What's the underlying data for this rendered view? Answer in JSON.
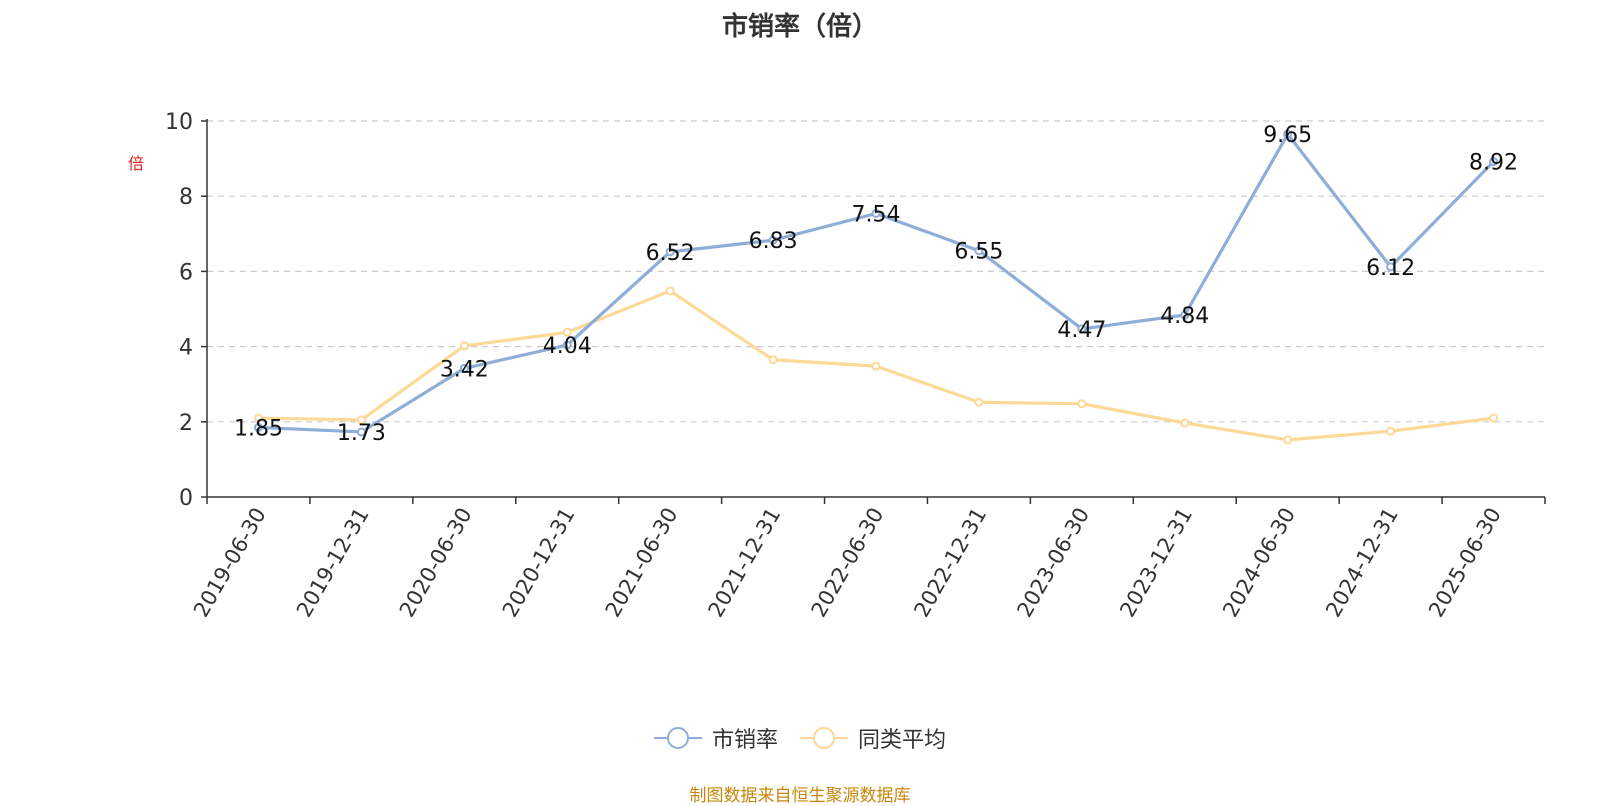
{
  "chart_data": {
    "type": "line",
    "title": "市销率（倍）",
    "ylabel": "倍",
    "ylim": [
      0,
      10
    ],
    "yticks": [
      0,
      2,
      4,
      6,
      8,
      10
    ],
    "grid": true,
    "legend_position": "bottom-center",
    "categories": [
      "2019-06-30",
      "2019-12-31",
      "2020-06-30",
      "2020-12-31",
      "2021-06-30",
      "2021-12-31",
      "2022-06-30",
      "2022-12-31",
      "2023-06-30",
      "2023-12-31",
      "2024-06-30",
      "2024-12-31",
      "2025-06-30"
    ],
    "series": [
      {
        "name": "市销率",
        "color": "#8eaed8",
        "show_labels": true,
        "values": [
          1.85,
          1.73,
          3.42,
          4.04,
          6.52,
          6.83,
          7.54,
          6.55,
          4.47,
          4.84,
          9.65,
          6.12,
          8.92
        ]
      },
      {
        "name": "同类平均",
        "color": "#fcd996",
        "show_labels": false,
        "values": [
          2.1,
          2.05,
          4.02,
          4.38,
          5.48,
          3.65,
          3.48,
          2.52,
          2.48,
          1.97,
          1.52,
          1.75,
          2.1
        ]
      }
    ]
  },
  "footer": {
    "source": "制图数据来自恒生聚源数据库"
  }
}
